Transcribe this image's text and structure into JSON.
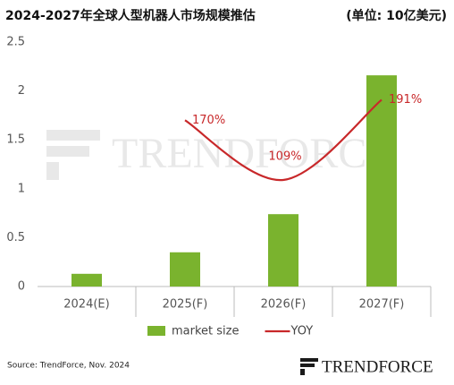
{
  "chart_data": {
    "type": "bar_line",
    "title": "2024-2027年全球人型机器人市场规模推估",
    "subtitle": "(单位: 10亿美元)",
    "categories": [
      "2024(E)",
      "2025(F)",
      "2026(F)",
      "2027(F)"
    ],
    "series": [
      {
        "name": "market size",
        "type": "bar",
        "color": "#7ab32e",
        "values": [
          0.13,
          0.35,
          0.74,
          2.16
        ]
      },
      {
        "name": "YOY",
        "type": "line",
        "axis": "y2",
        "color": "#c8282a",
        "values": [
          null,
          170,
          109,
          191
        ],
        "value_labels": [
          null,
          "170%",
          "109%",
          "191%"
        ]
      }
    ],
    "ylim": [
      0,
      2.5
    ],
    "yticks": [
      0,
      0.5,
      1,
      {
        "value": 1.5,
        "label": "1.5"
      },
      2,
      2.5
    ],
    "y2lim": [
      0,
      250
    ],
    "grid": false,
    "legend": "bottom",
    "source": "Source: TrendForce, Nov. 2024",
    "brand": "TRENDFORCE"
  }
}
